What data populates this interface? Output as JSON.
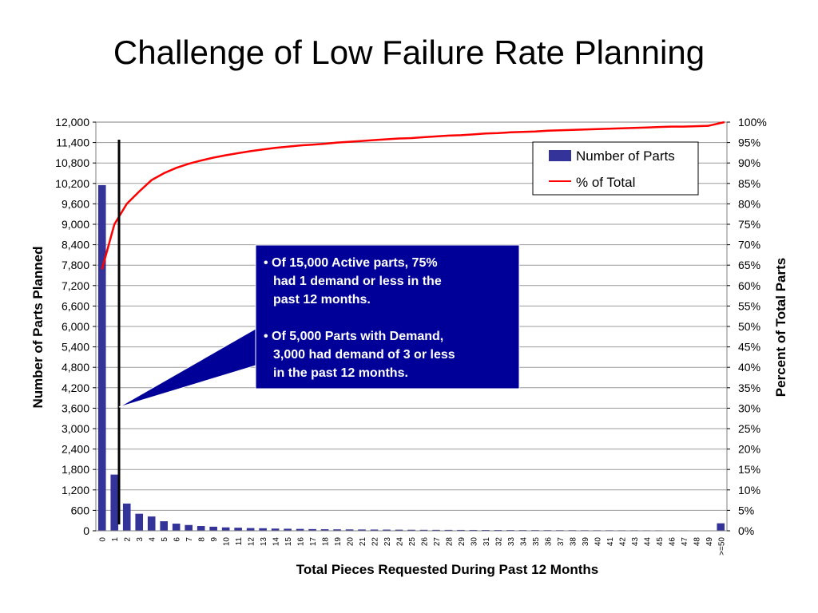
{
  "slide": {
    "title": "Challenge of Low Failure Rate Planning"
  },
  "colors": {
    "bar": "#333399",
    "line": "#ff0000",
    "callout_bg": "#000099",
    "marker": "#000000"
  },
  "chart_data": {
    "type": "bar",
    "xlabel": "Total Pieces Requested During Past 12 Months",
    "ylabel": "Number of Parts Planned",
    "y2label": "Percent of Total Parts",
    "ylim": [
      0,
      12000
    ],
    "y2lim": [
      0,
      100
    ],
    "yticks": [
      "0",
      "600",
      "1,200",
      "1,800",
      "2,400",
      "3,000",
      "3,600",
      "4,200",
      "4,800",
      "5,400",
      "6,000",
      "6,600",
      "7,200",
      "7,800",
      "8,400",
      "9,000",
      "9,600",
      "10,200",
      "10,800",
      "11,400",
      "12,000"
    ],
    "y2ticks": [
      "0%",
      "5%",
      "10%",
      "15%",
      "20%",
      "25%",
      "30%",
      "35%",
      "40%",
      "45%",
      "50%",
      "55%",
      "60%",
      "65%",
      "70%",
      "75%",
      "80%",
      "85%",
      "90%",
      "95%",
      "100%"
    ],
    "grid": true,
    "legend_position": "top-right",
    "categories": [
      "0",
      "1",
      "2",
      "3",
      "4",
      "5",
      "6",
      "7",
      "8",
      "9",
      "10",
      "11",
      "12",
      "13",
      "14",
      "15",
      "16",
      "17",
      "18",
      "19",
      "20",
      "21",
      "22",
      "23",
      "24",
      "25",
      "26",
      "27",
      "28",
      "29",
      "30",
      "31",
      "32",
      "33",
      "34",
      "35",
      "36",
      "37",
      "38",
      "39",
      "40",
      "41",
      "42",
      "43",
      "44",
      "45",
      "46",
      "47",
      "48",
      "49",
      ">=50"
    ],
    "series": [
      {
        "name": "Number of Parts",
        "type": "bar",
        "axis": "left",
        "values": [
          10150,
          1650,
          800,
          500,
          420,
          280,
          210,
          170,
          140,
          120,
          100,
          90,
          80,
          75,
          65,
          60,
          55,
          50,
          45,
          42,
          40,
          38,
          36,
          34,
          32,
          30,
          28,
          27,
          26,
          25,
          24,
          23,
          22,
          21,
          20,
          20,
          19,
          18,
          18,
          17,
          16,
          16,
          15,
          15,
          14,
          14,
          13,
          13,
          12,
          12,
          220
        ]
      },
      {
        "name": "% of Total",
        "type": "line",
        "axis": "right",
        "values": [
          64,
          75,
          80,
          83,
          85.8,
          87.5,
          88.8,
          89.8,
          90.6,
          91.3,
          91.9,
          92.4,
          92.9,
          93.3,
          93.7,
          94.0,
          94.3,
          94.5,
          94.7,
          95.0,
          95.2,
          95.4,
          95.6,
          95.8,
          96.0,
          96.1,
          96.3,
          96.5,
          96.7,
          96.8,
          97.0,
          97.2,
          97.3,
          97.5,
          97.6,
          97.7,
          97.9,
          98.0,
          98.1,
          98.2,
          98.3,
          98.4,
          98.5,
          98.6,
          98.7,
          98.8,
          98.9,
          98.9,
          99.0,
          99.1,
          100
        ]
      }
    ],
    "callout": {
      "lines": [
        "• Of 15,000 Active parts, 75%",
        "had 1 demand or less in the",
        "past 12 months.",
        "",
        "• Of 5,000 Parts with Demand,",
        "3,000 had demand of 3 or less",
        "in the past 12 months."
      ]
    }
  }
}
